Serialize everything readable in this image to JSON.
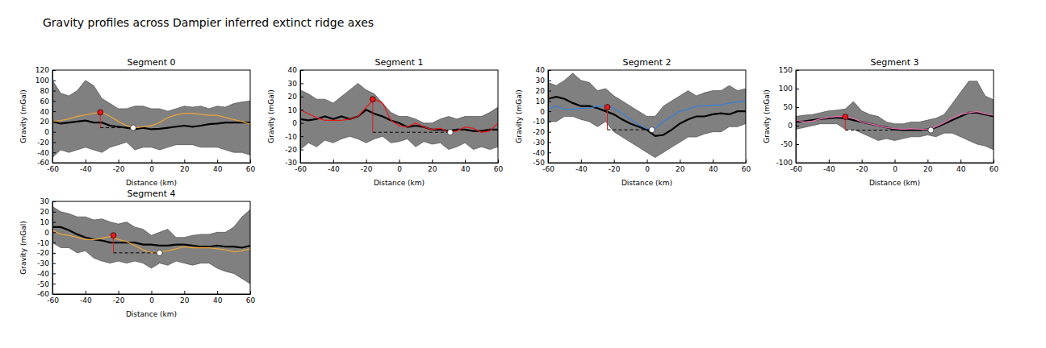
{
  "title": "Gravity profiles across Dampier inferred extinct ridge axes",
  "chart_data": [
    {
      "type": "line",
      "title": "Segment 0",
      "x_label": "Distance (km)",
      "y_label": "Gravity (mGal)",
      "xlim": [
        -60,
        60
      ],
      "xticks": [
        -60,
        -40,
        -20,
        0,
        20,
        40,
        60
      ],
      "ylim": [
        -60,
        120
      ],
      "yticks": [
        -60,
        -40,
        -20,
        0,
        20,
        40,
        60,
        80,
        100,
        120
      ],
      "x": [
        -60,
        -55,
        -50,
        -45,
        -40,
        -35,
        -30,
        -25,
        -20,
        -15,
        -10,
        -5,
        0,
        5,
        10,
        15,
        20,
        25,
        30,
        35,
        40,
        45,
        50,
        55,
        60
      ],
      "series": [
        {
          "type": "area",
          "color": "#808080",
          "lower": [
            -50,
            -35,
            -40,
            -35,
            -30,
            -35,
            -40,
            -30,
            -25,
            -20,
            -35,
            -30,
            -30,
            -35,
            -30,
            -25,
            -25,
            -25,
            -30,
            -30,
            -30,
            -35,
            -40,
            -40,
            -45
          ],
          "upper": [
            100,
            75,
            70,
            80,
            100,
            90,
            65,
            55,
            45,
            45,
            50,
            50,
            45,
            45,
            40,
            45,
            50,
            48,
            50,
            45,
            50,
            48,
            55,
            58,
            60
          ]
        },
        {
          "type": "line",
          "color": "#000000",
          "values": [
            20,
            16,
            18,
            20,
            22,
            18,
            18,
            12,
            10,
            8,
            5,
            8,
            5,
            6,
            8,
            10,
            12,
            10,
            12,
            15,
            16,
            18,
            18,
            18,
            18
          ]
        },
        {
          "type": "line",
          "color": "#e8a33a",
          "values": [
            20,
            22,
            25,
            30,
            33,
            36,
            38,
            30,
            20,
            12,
            8,
            10,
            12,
            18,
            28,
            33,
            36,
            36,
            34,
            32,
            32,
            28,
            24,
            20,
            15
          ]
        }
      ],
      "points": [
        {
          "x": -31,
          "y": 38,
          "color": "#e41a1c"
        },
        {
          "x": -11,
          "y": 8,
          "color": "#ffffff"
        }
      ]
    },
    {
      "type": "line",
      "title": "Segment 1",
      "x_label": "Distance (km)",
      "y_label": "Gravity (mGal)",
      "xlim": [
        -60,
        60
      ],
      "xticks": [
        -60,
        -40,
        -20,
        0,
        20,
        40,
        60
      ],
      "ylim": [
        -30,
        40
      ],
      "yticks": [
        -30,
        -20,
        -10,
        0,
        10,
        20,
        30,
        40
      ],
      "x": [
        -60,
        -55,
        -50,
        -45,
        -40,
        -35,
        -30,
        -25,
        -20,
        -15,
        -10,
        -5,
        0,
        5,
        10,
        15,
        20,
        25,
        30,
        35,
        40,
        45,
        50,
        55,
        60
      ],
      "series": [
        {
          "type": "area",
          "color": "#808080",
          "lower": [
            -20,
            -15,
            -18,
            -13,
            -15,
            -12,
            -10,
            -12,
            -15,
            -12,
            -10,
            -15,
            -14,
            -12,
            -18,
            -14,
            -16,
            -15,
            -20,
            -18,
            -15,
            -20,
            -18,
            -20,
            -18
          ],
          "upper": [
            25,
            22,
            18,
            18,
            15,
            20,
            25,
            30,
            25,
            22,
            15,
            8,
            5,
            5,
            3,
            0,
            0,
            3,
            5,
            3,
            5,
            5,
            5,
            8,
            12
          ]
        },
        {
          "type": "line",
          "color": "#000000",
          "values": [
            3,
            2,
            3,
            5,
            3,
            5,
            3,
            5,
            10,
            7,
            5,
            2,
            0,
            -3,
            -2,
            -3,
            -5,
            -5,
            -6,
            -5,
            -5,
            -6,
            -6,
            -5,
            -5
          ]
        },
        {
          "type": "line",
          "color": "#e41a1c",
          "values": [
            10,
            7,
            4,
            2,
            2,
            2,
            3,
            5,
            12,
            18,
            15,
            2,
            -2,
            -3,
            0,
            -3,
            -5,
            -4,
            -7,
            -6,
            -3,
            -4,
            -7,
            -6,
            0
          ]
        }
      ],
      "points": [
        {
          "x": -16,
          "y": 18,
          "color": "#e41a1c"
        },
        {
          "x": 31,
          "y": -7,
          "color": "#ffffff"
        }
      ]
    },
    {
      "type": "line",
      "title": "Segment 2",
      "x_label": "Distance (km)",
      "y_label": "Gravity (mGal)",
      "xlim": [
        -60,
        60
      ],
      "xticks": [
        -60,
        -40,
        -20,
        0,
        20,
        40,
        60
      ],
      "ylim": [
        -50,
        40
      ],
      "yticks": [
        -50,
        -40,
        -30,
        -20,
        -10,
        0,
        10,
        20,
        30,
        40
      ],
      "x": [
        -60,
        -55,
        -50,
        -45,
        -40,
        -35,
        -30,
        -25,
        -20,
        -15,
        -10,
        -5,
        0,
        5,
        10,
        15,
        20,
        25,
        30,
        35,
        40,
        45,
        50,
        55,
        60
      ],
      "series": [
        {
          "type": "area",
          "color": "#808080",
          "lower": [
            -10,
            -10,
            -5,
            -5,
            -8,
            -10,
            -15,
            -10,
            -20,
            -25,
            -30,
            -35,
            -40,
            -45,
            -40,
            -35,
            -30,
            -25,
            -25,
            -22,
            -20,
            -20,
            -15,
            -15,
            -12
          ],
          "upper": [
            28,
            25,
            30,
            37,
            30,
            28,
            20,
            22,
            15,
            10,
            5,
            0,
            -5,
            -5,
            5,
            10,
            15,
            20,
            15,
            18,
            20,
            20,
            25,
            20,
            22
          ]
        },
        {
          "type": "line",
          "color": "#000000",
          "values": [
            12,
            14,
            12,
            8,
            5,
            5,
            3,
            0,
            -3,
            -8,
            -12,
            -15,
            -18,
            -24,
            -23,
            -18,
            -12,
            -8,
            -5,
            -5,
            -3,
            -2,
            -3,
            0,
            0
          ]
        },
        {
          "type": "line",
          "color": "#3a7fd5",
          "values": [
            2,
            5,
            2,
            2,
            3,
            3,
            5,
            5,
            3,
            -2,
            -8,
            -13,
            -17,
            -17,
            -10,
            -5,
            0,
            2,
            5,
            5,
            6,
            6,
            8,
            9,
            10
          ]
        }
      ],
      "points": [
        {
          "x": -24,
          "y": 4,
          "color": "#e41a1c"
        },
        {
          "x": 3,
          "y": -18,
          "color": "#ffffff"
        }
      ]
    },
    {
      "type": "line",
      "title": "Segment 3",
      "x_label": "Distance (km)",
      "y_label": "Gravity (mGal)",
      "xlim": [
        -60,
        60
      ],
      "xticks": [
        -60,
        -40,
        -20,
        0,
        20,
        40,
        60
      ],
      "ylim": [
        -100,
        150
      ],
      "yticks": [
        -100,
        -50,
        0,
        50,
        100,
        150
      ],
      "x": [
        -60,
        -55,
        -50,
        -45,
        -40,
        -35,
        -30,
        -25,
        -20,
        -15,
        -10,
        -5,
        0,
        5,
        10,
        15,
        20,
        25,
        30,
        35,
        40,
        45,
        50,
        55,
        60
      ],
      "series": [
        {
          "type": "area",
          "color": "#808080",
          "lower": [
            -10,
            -5,
            0,
            5,
            5,
            5,
            -10,
            -10,
            -20,
            -30,
            -40,
            -35,
            -40,
            -35,
            -30,
            -30,
            -25,
            -30,
            -20,
            -20,
            -30,
            -40,
            -50,
            -55,
            -65
          ],
          "upper": [
            25,
            28,
            30,
            35,
            40,
            42,
            45,
            65,
            40,
            30,
            25,
            10,
            5,
            5,
            10,
            10,
            15,
            20,
            30,
            60,
            90,
            120,
            120,
            80,
            70
          ]
        },
        {
          "type": "line",
          "color": "#000000",
          "values": [
            10,
            12,
            15,
            18,
            20,
            22,
            20,
            15,
            10,
            5,
            0,
            -5,
            -10,
            -12,
            -12,
            -12,
            -10,
            -5,
            5,
            15,
            25,
            35,
            35,
            30,
            25
          ]
        },
        {
          "type": "line",
          "color": "#e06aa8",
          "values": [
            15,
            10,
            12,
            18,
            22,
            25,
            24,
            20,
            10,
            5,
            0,
            -5,
            -8,
            -10,
            -8,
            -10,
            -10,
            -3,
            8,
            20,
            30,
            35,
            38,
            32,
            28
          ]
        }
      ],
      "points": [
        {
          "x": -30,
          "y": 24,
          "color": "#e41a1c"
        },
        {
          "x": 22,
          "y": -12,
          "color": "#ffffff"
        }
      ]
    },
    {
      "type": "line",
      "title": "Segment 4",
      "x_label": "Distance (km)",
      "y_label": "Gravity (mGal)",
      "xlim": [
        -60,
        60
      ],
      "xticks": [
        -60,
        -40,
        -20,
        0,
        20,
        40,
        60
      ],
      "ylim": [
        -60,
        30
      ],
      "yticks": [
        -60,
        -50,
        -40,
        -30,
        -20,
        -10,
        0,
        10,
        20,
        30
      ],
      "x": [
        -60,
        -55,
        -50,
        -45,
        -40,
        -35,
        -30,
        -25,
        -20,
        -15,
        -10,
        -5,
        0,
        5,
        10,
        15,
        20,
        25,
        30,
        35,
        40,
        45,
        50,
        55,
        60
      ],
      "series": [
        {
          "type": "area",
          "color": "#808080",
          "lower": [
            -10,
            -15,
            -15,
            -20,
            -18,
            -25,
            -28,
            -30,
            -28,
            -30,
            -28,
            -30,
            -35,
            -30,
            -32,
            -28,
            -30,
            -32,
            -30,
            -30,
            -35,
            -38,
            -40,
            -45,
            -50
          ],
          "upper": [
            25,
            20,
            18,
            15,
            15,
            12,
            13,
            10,
            8,
            10,
            5,
            3,
            -3,
            0,
            3,
            -5,
            -5,
            -3,
            -2,
            -2,
            0,
            0,
            5,
            15,
            22
          ]
        },
        {
          "type": "line",
          "color": "#000000",
          "values": [
            5,
            5,
            2,
            -2,
            -5,
            -7,
            -8,
            -10,
            -10,
            -10,
            -10,
            -12,
            -12,
            -13,
            -13,
            -12,
            -12,
            -13,
            -14,
            -14,
            -13,
            -14,
            -14,
            -15,
            -13
          ]
        },
        {
          "type": "line",
          "color": "#e8a33a",
          "values": [
            2,
            -2,
            -3,
            -5,
            -7,
            -7,
            -6,
            -4,
            -7,
            -9,
            -13,
            -17,
            -20,
            -19,
            -18,
            -16,
            -14,
            -15,
            -15,
            -15,
            -16,
            -17,
            -19,
            -18,
            -16
          ]
        }
      ],
      "points": [
        {
          "x": -23,
          "y": -3,
          "color": "#e41a1c"
        },
        {
          "x": 5,
          "y": -20,
          "color": "#ffffff"
        }
      ]
    }
  ]
}
